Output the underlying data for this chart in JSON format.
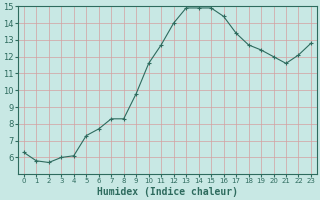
{
  "x": [
    0,
    1,
    2,
    3,
    4,
    5,
    6,
    7,
    8,
    9,
    10,
    11,
    12,
    13,
    14,
    15,
    16,
    17,
    18,
    19,
    20,
    21,
    22,
    23
  ],
  "y": [
    6.3,
    5.8,
    5.7,
    6.0,
    6.1,
    7.3,
    7.7,
    8.3,
    8.3,
    9.8,
    11.6,
    12.7,
    14.0,
    14.9,
    14.9,
    14.9,
    14.4,
    13.4,
    12.7,
    12.4,
    12.0,
    11.6,
    12.1,
    12.8
  ],
  "xlabel": "Humidex (Indice chaleur)",
  "ylim": [
    5,
    15
  ],
  "xlim": [
    -0.5,
    23.5
  ],
  "yticks": [
    6,
    7,
    8,
    9,
    10,
    11,
    12,
    13,
    14,
    15
  ],
  "xtick_labels": [
    "0",
    "1",
    "2",
    "3",
    "4",
    "5",
    "6",
    "7",
    "8",
    "9",
    "10",
    "11",
    "12",
    "13",
    "14",
    "15",
    "16",
    "17",
    "18",
    "19",
    "20",
    "21",
    "22",
    "23"
  ],
  "line_color": "#2e6b5e",
  "marker": "+",
  "bg_color": "#c8e8e4",
  "grid_color": "#d4a0a0",
  "axis_bg": "#c8e8e4"
}
